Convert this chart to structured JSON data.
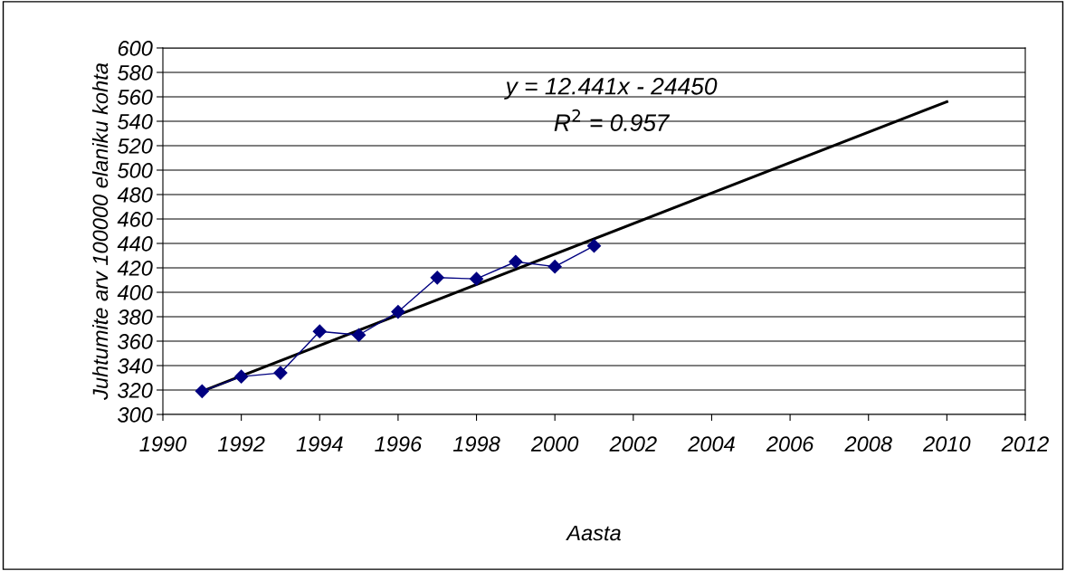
{
  "chart_data": {
    "type": "line",
    "xlabel": "Aasta",
    "ylabel": "Juhtumite arv 100000 elaniku kohta",
    "series": [
      {
        "color": "#000080",
        "x": [
          1991,
          1992,
          1993,
          1994,
          1995,
          1996,
          1997,
          1998,
          1999,
          2000,
          2001
        ],
        "values": [
          319,
          331,
          334,
          368,
          365,
          384,
          412,
          411,
          425,
          421,
          438
        ],
        "marker": "diamond"
      },
      {
        "type": "line",
        "color": "#000000",
        "x": [
          1991,
          2010
        ],
        "values": [
          319,
          556
        ],
        "marker": "none"
      }
    ],
    "annotations": [
      "y = 12.441x - 24450",
      "R$^{2}$ = 0.957"
    ],
    "xlim": [
      1990,
      2012
    ],
    "xticks": [
      1990,
      1992,
      1994,
      1996,
      1998,
      2000,
      2002,
      2004,
      2006,
      2008,
      2010,
      2012
    ],
    "ylim": [
      300,
      600
    ],
    "yticks": [
      300,
      320,
      340,
      360,
      380,
      400,
      420,
      440,
      460,
      480,
      500,
      520,
      540,
      560,
      580,
      600
    ],
    "grid": "y",
    "line_style": "solid"
  }
}
